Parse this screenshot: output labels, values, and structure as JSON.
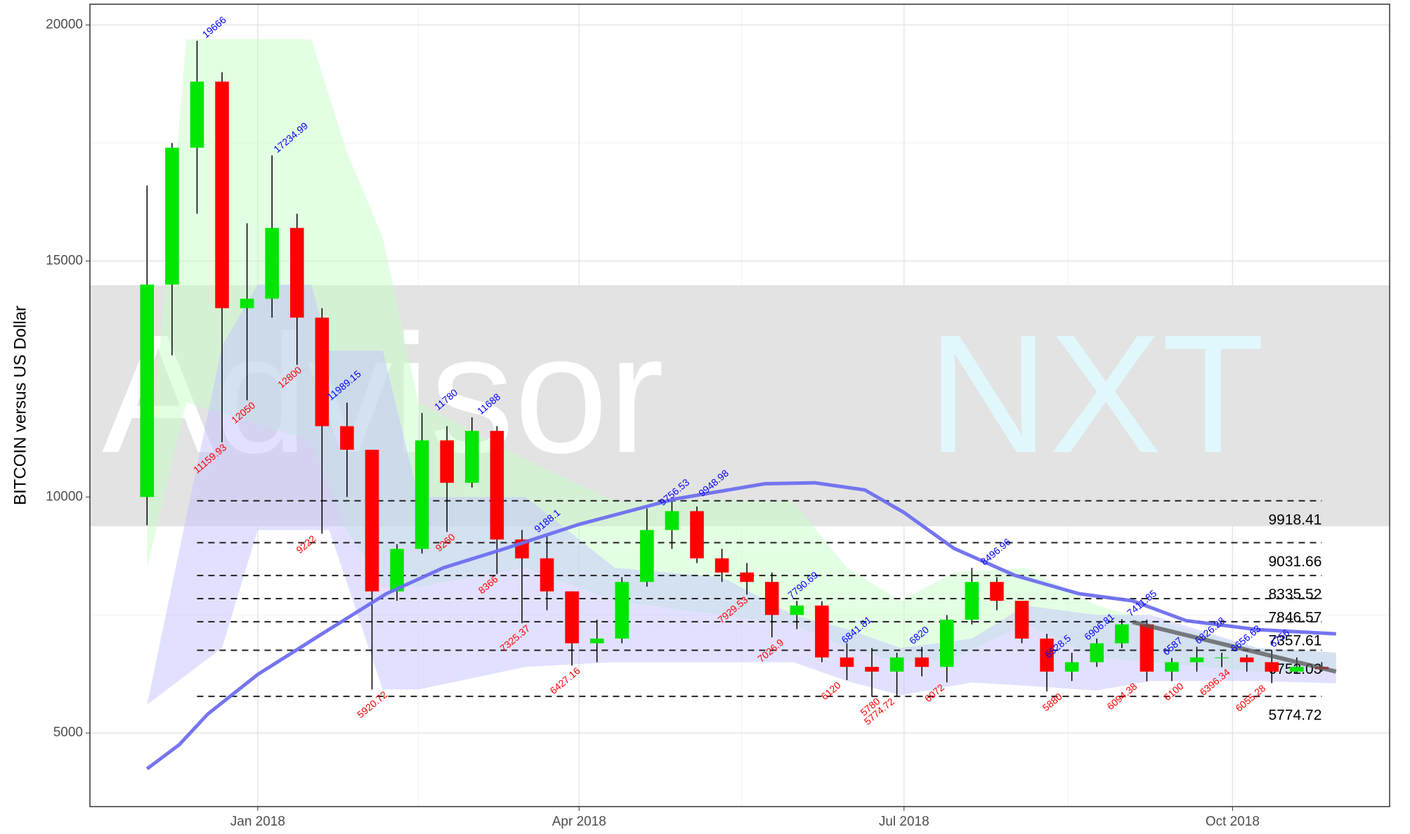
{
  "chart_data": {
    "type": "candlestick",
    "ylabel": "BITCOIN versus US Dollar",
    "watermark": [
      "Advisor",
      "NXT"
    ],
    "xlim": [
      -47,
      317
    ],
    "xticks": [
      {
        "value": 0,
        "label": "Jan 2018"
      },
      {
        "value": 90,
        "label": "Apr 2018"
      },
      {
        "value": 181,
        "label": "Jul 2018"
      },
      {
        "value": 273,
        "label": "Oct 2018"
      }
    ],
    "ylim": [
      3440,
      20440
    ],
    "yticks": [
      5000,
      10000,
      15000,
      20000
    ],
    "grid": true,
    "up_color": "#00e600",
    "down_color": "#ff0000",
    "candles": {
      "x": [
        -31,
        -24,
        -17,
        -10,
        -3,
        4,
        11,
        18,
        25,
        32,
        39,
        46,
        53,
        60,
        67,
        74,
        81,
        88,
        95,
        102,
        109,
        116,
        123,
        130,
        137,
        144,
        151,
        158,
        165,
        172,
        179,
        186,
        193,
        200,
        207,
        214,
        221,
        228,
        235,
        242,
        249,
        256,
        263,
        270,
        277,
        284,
        291,
        298
      ],
      "open": [
        10000,
        14500,
        17400,
        18800,
        14000,
        14200,
        15700,
        13800,
        11500,
        11000,
        8000,
        8900,
        11200,
        10300,
        11400,
        9100,
        8700,
        8000,
        6900,
        7000,
        8200,
        9300,
        9700,
        8700,
        8400,
        8200,
        7500,
        7700,
        6600,
        6400,
        6300,
        6600,
        6400,
        7400,
        8200,
        7800,
        7000,
        6300,
        6500,
        6900,
        7300,
        6300,
        6500,
        6600,
        6600,
        6500,
        6300,
        6400
      ],
      "high": [
        16600,
        17500,
        19666,
        19000,
        15800,
        17235,
        16000,
        14000,
        12000,
        11000,
        9000,
        11780,
        11500,
        11688,
        11500,
        9300,
        9188,
        8000,
        7400,
        8300,
        9756,
        9949,
        9800,
        8900,
        8600,
        8400,
        7800,
        7790,
        6900,
        6800,
        6700,
        6820,
        7500,
        8497,
        8300,
        7800,
        7100,
        6700,
        7000,
        7412,
        7400,
        6587,
        6826,
        6700,
        6657,
        6756,
        6600,
        6500
      ],
      "low": [
        9400,
        13000,
        16000,
        11160,
        12050,
        13800,
        12800,
        9222,
        10000,
        5921,
        7800,
        8800,
        9260,
        10200,
        8366,
        7325,
        7600,
        6427,
        6500,
        6900,
        8100,
        8900,
        8600,
        8200,
        7930,
        7026,
        7200,
        6500,
        6120,
        5780,
        5775,
        6200,
        6072,
        7300,
        7600,
        6900,
        5880,
        6100,
        6400,
        6800,
        6094,
        6100,
        6300,
        6396,
        6300,
        6055,
        6250,
        6300
      ],
      "close": [
        14500,
        17400,
        18800,
        14000,
        14200,
        15700,
        13800,
        11500,
        11000,
        8000,
        8900,
        11200,
        10300,
        11400,
        9100,
        8700,
        8000,
        6900,
        7000,
        8200,
        9300,
        9700,
        8700,
        8400,
        8200,
        7500,
        7700,
        6600,
        6400,
        6300,
        6600,
        6400,
        7400,
        8200,
        7800,
        7000,
        6300,
        6500,
        6900,
        7300,
        6300,
        6500,
        6600,
        6600,
        6500,
        6300,
        6400,
        6350
      ]
    },
    "moving_average": {
      "color": "#6e6ef0",
      "x": [
        -31,
        -22,
        -14,
        0,
        18,
        36,
        52,
        69,
        90,
        117,
        142,
        156,
        170,
        181,
        195,
        212,
        230,
        245,
        260,
        280,
        302
      ],
      "values": [
        4240,
        4750,
        5400,
        6240,
        7100,
        7950,
        8500,
        8900,
        9420,
        9960,
        10280,
        10300,
        10150,
        9670,
        8910,
        8340,
        7950,
        7800,
        7380,
        7190,
        7100
      ]
    },
    "bands": [
      {
        "color": "#c8ffc8",
        "x": [
          -31,
          -20,
          15,
          25,
          35,
          45,
          75,
          100,
          130,
          150,
          165,
          180,
          195,
          215,
          235,
          250,
          280,
          302
        ],
        "upper": [
          10000,
          19700,
          19700,
          17300,
          15500,
          12000,
          10800,
          9900,
          9950,
          9900,
          8500,
          7800,
          8400,
          8500,
          7700,
          7400,
          6800,
          6700
        ],
        "lower": [
          8500,
          12000,
          11200,
          9300,
          8100,
          8100,
          8500,
          7800,
          7500,
          7300,
          6800,
          6500,
          6600,
          7300,
          6600,
          6500,
          6300,
          6300
        ]
      },
      {
        "color": "#c4c4ff",
        "x": [
          -31,
          -10,
          0,
          15,
          20,
          35,
          45,
          75,
          100,
          130,
          150,
          165,
          180,
          200,
          215,
          235,
          250,
          280,
          302
        ],
        "upper": [
          5600,
          13200,
          14500,
          14500,
          13100,
          13100,
          10000,
          10000,
          8500,
          8300,
          7500,
          7200,
          6800,
          7000,
          7700,
          7500,
          7500,
          6800,
          6700
        ],
        "lower": [
          5600,
          6800,
          9300,
          9300,
          9300,
          5920,
          5920,
          6400,
          6500,
          6500,
          6500,
          6100,
          5800,
          6070,
          6000,
          5900,
          6100,
          6100,
          6050
        ]
      }
    ],
    "trendline": {
      "color": "#555555",
      "x": [
        245,
        302
      ],
      "values": [
        7350,
        6300
      ]
    },
    "levels": [
      9918.41,
      9031.66,
      8335.52,
      7846.57,
      7357.61,
      6752.03,
      5774.72
    ],
    "peaks": {
      "color": "#0000ff",
      "x": [
        -15,
        5,
        20,
        50,
        62,
        78,
        113,
        124,
        149,
        164,
        183,
        203,
        221,
        232,
        244,
        254,
        263,
        273,
        284
      ],
      "values": [
        19666,
        17234.99,
        11989.15,
        11780,
        11688,
        9188.1,
        9756.53,
        9948.98,
        7790.69,
        6841.81,
        6820,
        8496.96,
        6528.5,
        6906.81,
        7411.85,
        6587,
        6826.28,
        6656.63,
        6756
      ]
    },
    "troughs": {
      "color": "#ff0000",
      "x": [
        -9,
        -1,
        12,
        16,
        55,
        67,
        36,
        76,
        90,
        137,
        147,
        163,
        174,
        178,
        192,
        225,
        246,
        259,
        272,
        282
      ],
      "values": [
        11159.93,
        12050,
        12800,
        9222,
        9260,
        8366,
        5920.72,
        7325.37,
        6427.16,
        7929.53,
        7026.9,
        6120,
        5780,
        5774.72,
        6072,
        5880,
        6094.38,
        6100,
        6396.34,
        6055.28
      ]
    }
  }
}
